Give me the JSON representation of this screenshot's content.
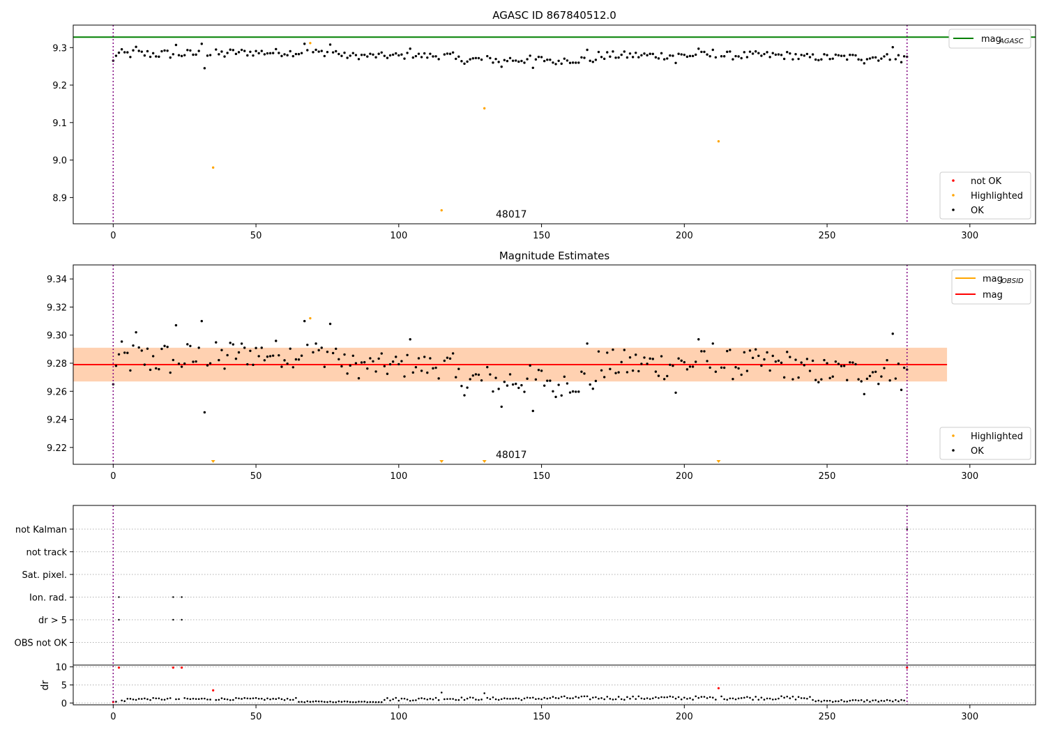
{
  "chart_data": [
    {
      "type": "scatter",
      "title": "AGASC ID 867840512.0",
      "xlim": [
        -14,
        323
      ],
      "ylim": [
        8.83,
        9.36
      ],
      "x_ticks": [
        "0",
        "50",
        "100",
        "150",
        "200",
        "250",
        "300"
      ],
      "y_ticks": [
        "8.9",
        "9.0",
        "9.1",
        "9.2",
        "9.3"
      ],
      "vlines": [
        0,
        278
      ],
      "hline_mag_agasc": 9.328,
      "annotation": {
        "text": "48017",
        "x": 139,
        "y": 8.845
      },
      "series": [
        {
          "name": "not OK",
          "color": "#ff0000",
          "generator": "notok"
        },
        {
          "name": "Highlighted",
          "color": "#ffa500",
          "generator": "highlighted"
        },
        {
          "name": "OK",
          "color": "#000000",
          "generator": "ok"
        }
      ],
      "highlighted_points": [
        [
          35,
          8.98
        ],
        [
          69,
          9.312
        ],
        [
          115,
          8.866
        ],
        [
          130,
          9.138
        ],
        [
          212,
          9.05
        ]
      ],
      "legend_top": [
        {
          "label": "mag",
          "subscript": "AGASC",
          "color": "#008000"
        }
      ],
      "legend_bottom": [
        {
          "label": "not OK",
          "color": "#ff0000"
        },
        {
          "label": "Highlighted",
          "color": "#ffa500"
        },
        {
          "label": "OK",
          "color": "#000000"
        }
      ]
    },
    {
      "type": "scatter",
      "title": "Magnitude Estimates",
      "xlim": [
        -14,
        323
      ],
      "ylim": [
        9.208,
        9.35
      ],
      "x_ticks": [
        "0",
        "50",
        "100",
        "150",
        "200",
        "250",
        "300"
      ],
      "y_ticks": [
        "9.22",
        "9.24",
        "9.26",
        "9.28",
        "9.30",
        "9.32",
        "9.34"
      ],
      "vlines": [
        0,
        278
      ],
      "mag": 9.279,
      "mag_band": [
        9.267,
        9.291
      ],
      "mag_obsid_band": [
        9.267,
        9.291
      ],
      "band_xrange": [
        -14,
        292
      ],
      "annotation": {
        "text": "48017",
        "x": 139,
        "y": 9.212
      },
      "offscale_markers_x": [
        35,
        115,
        130,
        212
      ],
      "highlighted_points": [
        [
          69,
          9.312
        ]
      ],
      "legend_top": [
        {
          "label": "mag",
          "subscript": "OBSID",
          "color": "#ffa500"
        },
        {
          "label": "mag",
          "subscript": "",
          "color": "#ff0000"
        }
      ],
      "legend_bottom": [
        {
          "label": "Highlighted",
          "color": "#ffa500"
        },
        {
          "label": "OK",
          "color": "#000000"
        }
      ]
    },
    {
      "type": "scatter",
      "title": "",
      "xlim": [
        -14,
        323
      ],
      "flag_rows": [
        "not Kalman",
        "not track",
        "Sat. pixel.",
        "Ion. rad.",
        "dr > 5",
        "OBS not OK"
      ],
      "flag_points": [
        {
          "row": "Ion. rad.",
          "x": [
            2,
            21,
            24
          ]
        },
        {
          "row": "dr > 5",
          "x": [
            2,
            21,
            24
          ]
        },
        {
          "row": "not Kalman",
          "x": [
            278
          ]
        }
      ],
      "dr_ylabel": "dr",
      "dr_ylim": [
        -0.5,
        10.5
      ],
      "dr_ticks": [
        "0",
        "5",
        "10"
      ],
      "dr_red_points": [
        [
          0,
          0.3
        ],
        [
          2,
          9.8
        ],
        [
          21,
          9.8
        ],
        [
          24,
          9.8
        ],
        [
          35,
          3.5
        ],
        [
          212,
          4.1
        ],
        [
          278,
          9.8
        ]
      ],
      "x_ticks": [
        "0",
        "50",
        "100",
        "150",
        "200",
        "250",
        "300"
      ],
      "vlines": [
        0,
        278
      ]
    }
  ]
}
